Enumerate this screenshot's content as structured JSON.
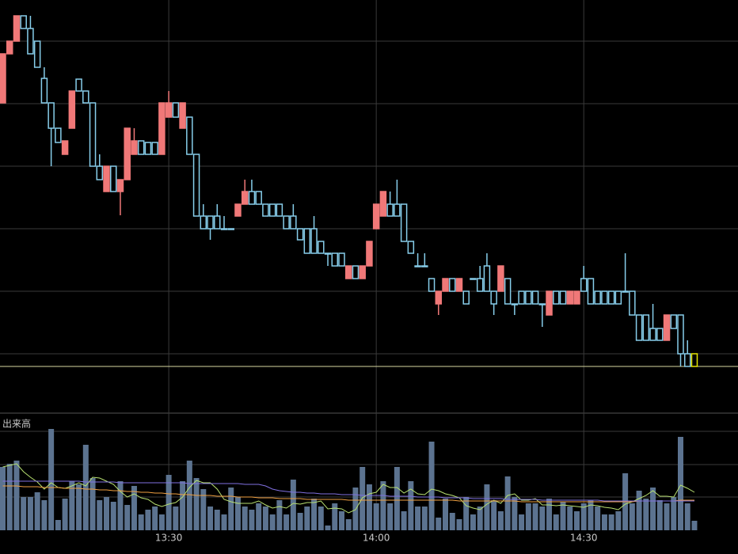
{
  "chart_data": [
    {
      "type": "candlestick",
      "x": [
        786,
        787,
        788,
        789,
        790,
        791,
        792,
        793,
        794,
        795,
        796,
        797,
        798,
        799,
        800,
        801,
        802,
        803,
        804,
        805,
        806,
        807,
        808,
        809,
        810,
        811,
        812,
        813,
        814,
        815,
        816,
        817,
        818,
        819,
        820,
        821,
        822,
        823,
        824,
        825,
        826,
        827,
        828,
        829,
        830,
        831,
        832,
        833,
        834,
        835,
        836,
        837,
        838,
        839,
        840,
        841,
        842,
        843,
        844,
        845,
        846,
        847,
        848,
        849,
        850,
        851,
        852,
        853,
        854,
        855,
        856,
        857,
        858,
        859,
        860,
        861,
        862,
        863,
        864,
        865,
        866,
        867,
        868,
        869,
        870,
        871,
        872,
        873,
        874,
        875,
        876,
        877,
        878,
        879,
        880,
        881,
        882,
        883,
        884,
        885,
        886
      ],
      "open": [
        370,
        432,
        448,
        480,
        464,
        448,
        401,
        370,
        338,
        305,
        338,
        400,
        385,
        370,
        290,
        258,
        290,
        258,
        273,
        305,
        322,
        320,
        320,
        305,
        352,
        370,
        338,
        352,
        305,
        227,
        227,
        227,
        211,
        211,
        227,
        242,
        258,
        258,
        242,
        242,
        242,
        227,
        227,
        211,
        211,
        211,
        195,
        180,
        180,
        180,
        148,
        164,
        148,
        164,
        211,
        227,
        242,
        242,
        242,
        195,
        164,
        164,
        148,
        116,
        132,
        148,
        132,
        132,
        148,
        148,
        164,
        132,
        132,
        148,
        116,
        132,
        132,
        132,
        116,
        102,
        132,
        132,
        116,
        116,
        148,
        148,
        132,
        132,
        132,
        132,
        132,
        132,
        102,
        102,
        85,
        85,
        70,
        102,
        102,
        53,
        53
      ],
      "high": [
        432,
        448,
        480,
        480,
        480,
        448,
        415,
        370,
        338,
        322,
        385,
        400,
        385,
        370,
        305,
        290,
        290,
        273,
        338,
        338,
        322,
        320,
        320,
        370,
        385,
        370,
        370,
        352,
        305,
        242,
        227,
        242,
        227,
        211,
        242,
        273,
        273,
        258,
        242,
        242,
        242,
        227,
        242,
        211,
        211,
        227,
        195,
        180,
        180,
        180,
        164,
        164,
        164,
        195,
        242,
        258,
        258,
        273,
        242,
        195,
        180,
        180,
        148,
        132,
        148,
        148,
        148,
        132,
        148,
        164,
        180,
        132,
        164,
        148,
        116,
        132,
        132,
        132,
        116,
        132,
        132,
        132,
        132,
        132,
        164,
        148,
        132,
        132,
        132,
        132,
        180,
        132,
        102,
        102,
        116,
        85,
        102,
        102,
        102,
        70,
        53
      ],
      "low": [
        370,
        432,
        448,
        464,
        432,
        415,
        370,
        290,
        320,
        305,
        338,
        385,
        370,
        290,
        273,
        258,
        258,
        228,
        273,
        305,
        305,
        305,
        305,
        305,
        352,
        352,
        338,
        305,
        227,
        211,
        197,
        211,
        211,
        211,
        227,
        242,
        242,
        242,
        227,
        227,
        227,
        211,
        211,
        197,
        180,
        180,
        180,
        164,
        164,
        164,
        148,
        148,
        148,
        164,
        211,
        227,
        227,
        227,
        195,
        180,
        164,
        164,
        132,
        102,
        132,
        132,
        132,
        116,
        148,
        132,
        132,
        102,
        132,
        116,
        102,
        116,
        116,
        116,
        87,
        102,
        116,
        116,
        116,
        116,
        132,
        116,
        116,
        116,
        116,
        116,
        132,
        102,
        70,
        70,
        70,
        70,
        70,
        85,
        37,
        37,
        37
      ],
      "close": [
        432,
        448,
        480,
        464,
        432,
        415,
        370,
        338,
        320,
        322,
        385,
        385,
        370,
        290,
        273,
        290,
        258,
        273,
        338,
        322,
        305,
        305,
        305,
        370,
        370,
        352,
        370,
        305,
        227,
        211,
        211,
        211,
        211,
        211,
        242,
        258,
        242,
        242,
        227,
        227,
        227,
        211,
        211,
        197,
        180,
        180,
        180,
        180,
        164,
        164,
        164,
        148,
        164,
        195,
        242,
        258,
        227,
        227,
        195,
        180,
        164,
        164,
        132,
        132,
        148,
        132,
        148,
        116,
        148,
        132,
        132,
        116,
        164,
        116,
        116,
        116,
        116,
        116,
        116,
        132,
        116,
        116,
        132,
        132,
        132,
        116,
        116,
        116,
        116,
        116,
        132,
        102,
        70,
        70,
        70,
        70,
        102,
        85,
        53,
        37,
        37
      ],
      "xlim": [
        785.6,
        892.3
      ],
      "ylim": [
        -22,
        500
      ],
      "yticks": [
        448,
        369,
        290,
        211,
        132,
        53
      ],
      "up_color": "#f07878",
      "down_color": "#87ceeb",
      "last_color": "#e6e600",
      "grid": true
    },
    {
      "type": "bar",
      "title": "出来高",
      "x": [
        786,
        787,
        788,
        789,
        790,
        791,
        792,
        793,
        794,
        795,
        796,
        797,
        798,
        799,
        800,
        801,
        802,
        803,
        804,
        805,
        806,
        807,
        808,
        809,
        810,
        811,
        812,
        813,
        814,
        815,
        816,
        817,
        818,
        819,
        820,
        821,
        822,
        823,
        824,
        825,
        826,
        827,
        828,
        829,
        830,
        831,
        832,
        833,
        834,
        835,
        836,
        837,
        838,
        839,
        840,
        841,
        842,
        843,
        844,
        845,
        846,
        847,
        848,
        849,
        850,
        851,
        852,
        853,
        854,
        855,
        856,
        857,
        858,
        859,
        860,
        861,
        862,
        863,
        864,
        865,
        866,
        867,
        868,
        869,
        870,
        871,
        872,
        873,
        874,
        875,
        876,
        877,
        878,
        879,
        880,
        881,
        882,
        883,
        884,
        885,
        886
      ],
      "values": [
        80,
        84,
        88,
        42,
        42,
        48,
        38,
        128,
        13,
        40,
        62,
        58,
        108,
        66,
        38,
        42,
        36,
        62,
        32,
        56,
        20,
        26,
        30,
        20,
        70,
        30,
        62,
        88,
        66,
        52,
        30,
        26,
        20,
        54,
        42,
        30,
        26,
        34,
        30,
        20,
        38,
        20,
        64,
        22,
        30,
        40,
        30,
        6,
        34,
        24,
        14,
        54,
        80,
        58,
        34,
        62,
        34,
        80,
        24,
        62,
        30,
        30,
        112,
        16,
        40,
        22,
        14,
        42,
        20,
        30,
        58,
        38,
        24,
        68,
        42,
        20,
        34,
        34,
        30,
        40,
        20,
        36,
        30,
        24,
        34,
        38,
        30,
        20,
        20,
        24,
        72,
        34,
        50,
        40,
        54,
        38,
        34,
        42,
        118,
        34,
        12
      ],
      "color": "#5c7390",
      "series": [
        {
          "color": "#b8e070",
          "values": [
            80,
            82,
            84,
            74,
            67,
            61,
            52,
            60,
            54,
            53,
            56,
            60,
            56,
            67,
            66,
            62,
            58,
            49,
            42,
            46,
            41,
            39,
            33,
            30,
            33,
            35,
            42,
            54,
            63,
            60,
            60,
            52,
            39,
            36,
            34,
            34,
            34,
            37,
            32,
            28,
            30,
            28,
            34,
            33,
            35,
            35,
            37,
            27,
            28,
            27,
            22,
            26,
            41,
            46,
            48,
            58,
            54,
            54,
            47,
            52,
            46,
            45,
            52,
            50,
            46,
            44,
            41,
            31,
            28,
            26,
            33,
            38,
            34,
            44,
            46,
            38,
            38,
            40,
            32,
            32,
            31,
            32,
            31,
            30,
            29,
            32,
            31,
            29,
            28,
            26,
            33,
            36,
            40,
            44,
            50,
            43,
            43,
            42,
            57,
            53,
            48
          ]
        },
        {
          "color": "#f0a040",
          "values": [
            56,
            56,
            56,
            55,
            55,
            55,
            54,
            54,
            54,
            53,
            53,
            53,
            52,
            52,
            51,
            51,
            50,
            50,
            49,
            49,
            48,
            48,
            47,
            47,
            46,
            46,
            45,
            45,
            44,
            44,
            44,
            43,
            43,
            43,
            42,
            42,
            42,
            41,
            41,
            41,
            40,
            40,
            40,
            40,
            39,
            39,
            39,
            39,
            39,
            39,
            38,
            38,
            38,
            38,
            38,
            38,
            38,
            38,
            38,
            38,
            38,
            38,
            38,
            38,
            38,
            38,
            37,
            37,
            37,
            37,
            37,
            37,
            37,
            37,
            37,
            36,
            36,
            36,
            36,
            36,
            36,
            36,
            36,
            36,
            36,
            36,
            36,
            36,
            36,
            36,
            36,
            36,
            37,
            37,
            37,
            37,
            37,
            37,
            38,
            38,
            38
          ]
        },
        {
          "color": "#8070e0",
          "values": [
            62,
            62,
            62,
            62,
            62,
            62,
            62,
            62,
            62,
            62,
            62,
            62,
            61,
            61,
            61,
            61,
            61,
            60,
            60,
            60,
            60,
            60,
            60,
            60,
            60,
            60,
            60,
            59,
            59,
            59,
            59,
            59,
            59,
            59,
            59,
            58,
            58,
            58,
            56,
            52,
            50,
            49,
            48,
            48,
            47,
            47,
            46,
            46,
            46,
            45,
            45,
            45,
            44,
            44,
            44,
            44,
            43,
            43,
            43,
            43,
            42,
            42,
            42,
            42,
            41,
            41,
            41,
            41,
            40,
            40,
            40,
            40,
            40,
            39,
            39,
            39,
            39,
            39,
            38,
            38,
            38,
            38,
            38,
            38,
            38,
            38,
            38,
            37,
            37,
            37,
            37,
            37,
            37,
            37,
            37,
            37,
            37,
            37,
            37,
            37,
            37
          ]
        }
      ],
      "xlim": [
        785.6,
        892.3
      ],
      "ylim": [
        0,
        148
      ],
      "yticks": [
        125,
        83,
        42
      ],
      "xticks": [
        {
          "value": 810,
          "label": "13:30"
        },
        {
          "value": 840,
          "label": "14:00"
        },
        {
          "value": 870,
          "label": "14:30"
        }
      ],
      "grid": true
    }
  ]
}
